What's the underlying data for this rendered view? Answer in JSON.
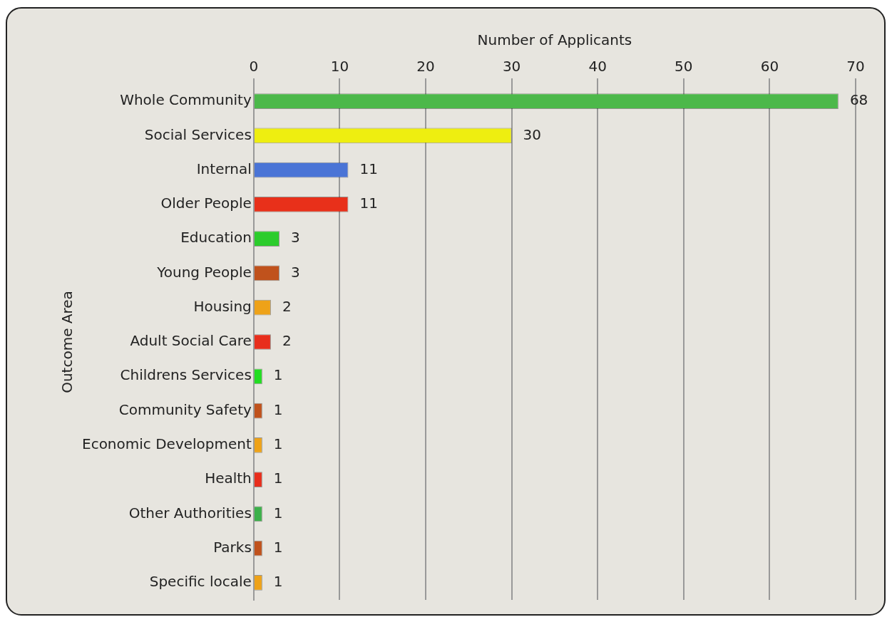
{
  "chart_data": {
    "type": "bar",
    "orientation": "horizontal",
    "xlabel": "Number of Applicants",
    "ylabel": "Outcome Area",
    "categories": [
      "Whole Community",
      "Social Services",
      "Internal",
      "Older People",
      "Education",
      "Young People",
      "Housing",
      "Adult Social Care",
      "Childrens Services",
      "Community Safety",
      "Economic Development",
      "Health",
      "Other Authorities",
      "Parks",
      "Specific locale"
    ],
    "values": [
      68,
      30,
      11,
      11,
      3,
      3,
      2,
      2,
      1,
      1,
      1,
      1,
      1,
      1,
      1
    ],
    "colors": [
      "#4cb84a",
      "#eeee10",
      "#4a74d6",
      "#e8301a",
      "#2ccc2c",
      "#c0521c",
      "#eea218",
      "#e82e1c",
      "#22dd22",
      "#c0521c",
      "#eea218",
      "#e82e1c",
      "#3cb04a",
      "#c0521c",
      "#eea218"
    ],
    "xlim": [
      0,
      70
    ],
    "xticks": [
      0,
      10,
      20,
      30,
      40,
      50,
      60,
      70
    ],
    "grid": "x",
    "data_labels": true
  }
}
